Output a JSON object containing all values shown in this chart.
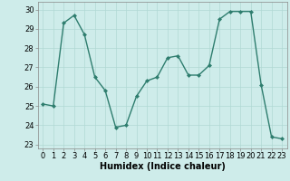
{
  "x": [
    0,
    1,
    2,
    3,
    4,
    5,
    6,
    7,
    8,
    9,
    10,
    11,
    12,
    13,
    14,
    15,
    16,
    17,
    18,
    19,
    20,
    21,
    22,
    23
  ],
  "y": [
    25.1,
    25.0,
    29.3,
    29.7,
    28.7,
    26.5,
    25.8,
    23.9,
    24.0,
    25.5,
    26.3,
    26.5,
    27.5,
    27.6,
    26.6,
    26.6,
    27.1,
    29.5,
    29.9,
    29.9,
    29.9,
    26.1,
    23.4,
    23.3
  ],
  "line_color": "#2e7d6e",
  "marker": "D",
  "markersize": 2.0,
  "linewidth": 1.0,
  "background_color": "#ceecea",
  "grid_color": "#b0d8d4",
  "xlabel": "Humidex (Indice chaleur)",
  "xlabel_fontsize": 7,
  "tick_fontsize": 6,
  "ylim": [
    22.8,
    30.4
  ],
  "xlim": [
    -0.5,
    23.5
  ],
  "yticks": [
    23,
    24,
    25,
    26,
    27,
    28,
    29,
    30
  ],
  "xticks": [
    0,
    1,
    2,
    3,
    4,
    5,
    6,
    7,
    8,
    9,
    10,
    11,
    12,
    13,
    14,
    15,
    16,
    17,
    18,
    19,
    20,
    21,
    22,
    23
  ]
}
